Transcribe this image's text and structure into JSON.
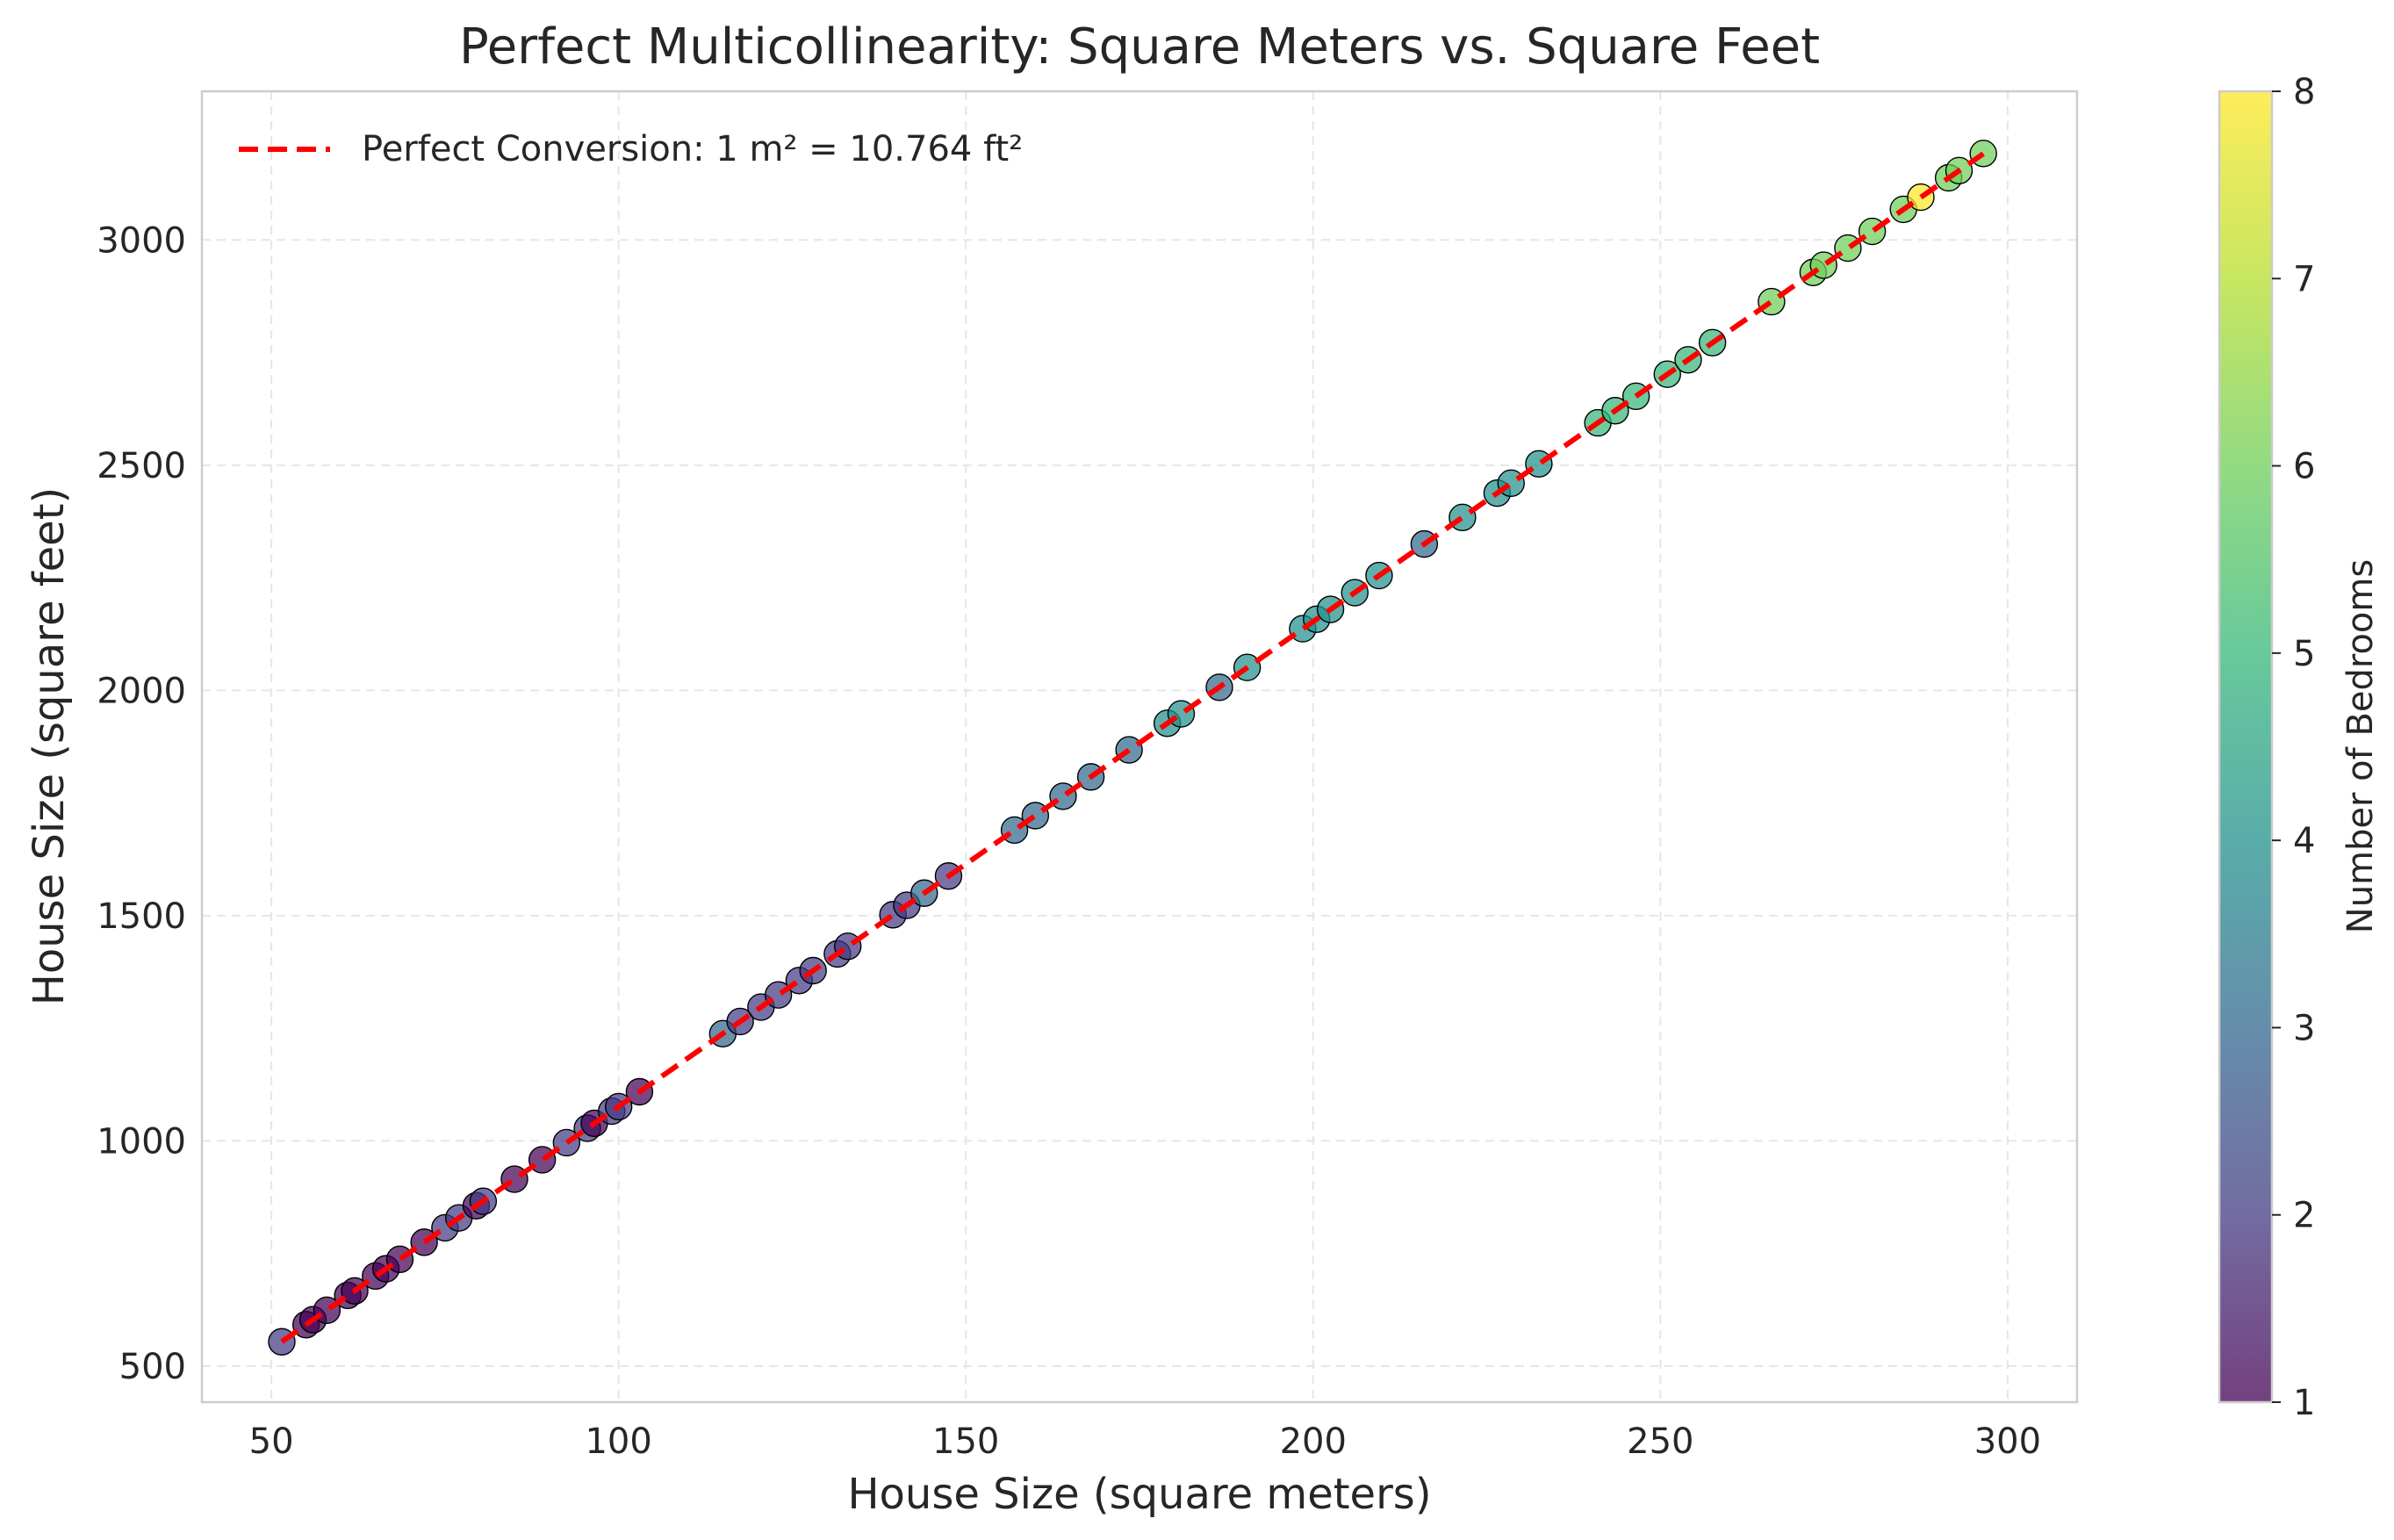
{
  "chart_data": {
    "type": "scatter",
    "title": "Perfect Multicollinearity: Square Meters vs. Square Feet",
    "xlabel": "House Size (square meters)",
    "ylabel": "House Size (square feet)",
    "xlim": [
      40,
      310
    ],
    "ylim": [
      420,
      3330
    ],
    "xticks": [
      50,
      100,
      150,
      200,
      250,
      300
    ],
    "yticks": [
      500,
      1000,
      1500,
      2000,
      2500,
      3000
    ],
    "grid": true,
    "legend": {
      "placement": "top-left",
      "entries": [
        "Perfect Conversion: 1 m² = 10.764 ft²"
      ]
    },
    "line": {
      "name": "Perfect Conversion: 1 m² = 10.764 ft²",
      "slope": 10.764,
      "x": [
        51.5,
        296.5
      ],
      "color": "#ff0000",
      "style": "dashed"
    },
    "colorbar": {
      "label": "Number of Bedrooms",
      "min": 1,
      "max": 8,
      "ticks": [
        1,
        2,
        3,
        4,
        5,
        6,
        7,
        8
      ],
      "colormap": "viridis"
    },
    "points": [
      {
        "x": 51.5,
        "y": 554,
        "c": 2
      },
      {
        "x": 55,
        "y": 592,
        "c": 1
      },
      {
        "x": 56,
        "y": 603,
        "c": 1
      },
      {
        "x": 58,
        "y": 624,
        "c": 1
      },
      {
        "x": 61,
        "y": 657,
        "c": 1
      },
      {
        "x": 62,
        "y": 667,
        "c": 1
      },
      {
        "x": 65,
        "y": 700,
        "c": 1
      },
      {
        "x": 66.5,
        "y": 716,
        "c": 1
      },
      {
        "x": 68.5,
        "y": 737,
        "c": 1
      },
      {
        "x": 72,
        "y": 775,
        "c": 1
      },
      {
        "x": 75,
        "y": 807,
        "c": 2
      },
      {
        "x": 77,
        "y": 829,
        "c": 2
      },
      {
        "x": 79.5,
        "y": 856,
        "c": 1
      },
      {
        "x": 80.5,
        "y": 866,
        "c": 2
      },
      {
        "x": 85,
        "y": 915,
        "c": 1
      },
      {
        "x": 89,
        "y": 958,
        "c": 1
      },
      {
        "x": 92.5,
        "y": 996,
        "c": 2
      },
      {
        "x": 95.5,
        "y": 1028,
        "c": 2
      },
      {
        "x": 96.5,
        "y": 1039,
        "c": 1
      },
      {
        "x": 99,
        "y": 1066,
        "c": 2
      },
      {
        "x": 100,
        "y": 1076,
        "c": 2
      },
      {
        "x": 103,
        "y": 1109,
        "c": 1
      },
      {
        "x": 115,
        "y": 1238,
        "c": 3
      },
      {
        "x": 117.5,
        "y": 1265,
        "c": 2
      },
      {
        "x": 120.5,
        "y": 1297,
        "c": 2
      },
      {
        "x": 123,
        "y": 1324,
        "c": 2
      },
      {
        "x": 126,
        "y": 1356,
        "c": 2
      },
      {
        "x": 128,
        "y": 1378,
        "c": 2
      },
      {
        "x": 131.5,
        "y": 1415,
        "c": 2
      },
      {
        "x": 133,
        "y": 1432,
        "c": 2
      },
      {
        "x": 139.5,
        "y": 1502,
        "c": 2
      },
      {
        "x": 141.5,
        "y": 1523,
        "c": 2
      },
      {
        "x": 144,
        "y": 1550,
        "c": 3
      },
      {
        "x": 147.5,
        "y": 1588,
        "c": 2
      },
      {
        "x": 157,
        "y": 1690,
        "c": 3
      },
      {
        "x": 160,
        "y": 1722,
        "c": 3
      },
      {
        "x": 164,
        "y": 1765,
        "c": 3
      },
      {
        "x": 168,
        "y": 1808,
        "c": 3
      },
      {
        "x": 173.5,
        "y": 1868,
        "c": 3
      },
      {
        "x": 179,
        "y": 1927,
        "c": 4
      },
      {
        "x": 181,
        "y": 1948,
        "c": 4
      },
      {
        "x": 186.5,
        "y": 2007,
        "c": 3
      },
      {
        "x": 190.5,
        "y": 2051,
        "c": 4
      },
      {
        "x": 198.5,
        "y": 2137,
        "c": 4
      },
      {
        "x": 200.5,
        "y": 2158,
        "c": 4
      },
      {
        "x": 202.5,
        "y": 2180,
        "c": 4
      },
      {
        "x": 206,
        "y": 2217,
        "c": 4
      },
      {
        "x": 209.5,
        "y": 2255,
        "c": 4
      },
      {
        "x": 216,
        "y": 2325,
        "c": 3
      },
      {
        "x": 221.5,
        "y": 2384,
        "c": 4
      },
      {
        "x": 226.5,
        "y": 2438,
        "c": 4
      },
      {
        "x": 228.5,
        "y": 2460,
        "c": 4
      },
      {
        "x": 232.5,
        "y": 2503,
        "c": 4
      },
      {
        "x": 241,
        "y": 2594,
        "c": 5
      },
      {
        "x": 243.5,
        "y": 2621,
        "c": 5
      },
      {
        "x": 246.5,
        "y": 2653,
        "c": 5
      },
      {
        "x": 251,
        "y": 2702,
        "c": 5
      },
      {
        "x": 254,
        "y": 2734,
        "c": 5
      },
      {
        "x": 257.5,
        "y": 2772,
        "c": 5
      },
      {
        "x": 266,
        "y": 2863,
        "c": 6
      },
      {
        "x": 272,
        "y": 2928,
        "c": 6
      },
      {
        "x": 273.5,
        "y": 2944,
        "c": 6
      },
      {
        "x": 277,
        "y": 2982,
        "c": 6
      },
      {
        "x": 280.5,
        "y": 3019,
        "c": 6
      },
      {
        "x": 285,
        "y": 3068,
        "c": 6
      },
      {
        "x": 287.5,
        "y": 3095,
        "c": 8
      },
      {
        "x": 291.5,
        "y": 3138,
        "c": 6
      },
      {
        "x": 293,
        "y": 3154,
        "c": 6
      },
      {
        "x": 296.5,
        "y": 3192,
        "c": 6
      }
    ]
  }
}
